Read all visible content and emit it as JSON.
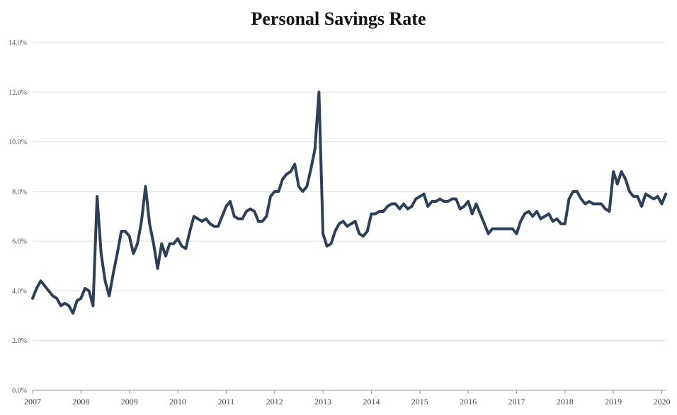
{
  "chart_data": {
    "type": "line",
    "title": "Personal Savings Rate",
    "xlabel": "",
    "ylabel": "",
    "ylim": [
      0,
      14
    ],
    "xlim": [
      2007,
      2020.08
    ],
    "y_ticks": [
      {
        "value": 0,
        "label": "0.0%"
      },
      {
        "value": 2,
        "label": "2.0%"
      },
      {
        "value": 4,
        "label": "4.0%"
      },
      {
        "value": 6,
        "label": "6.0%"
      },
      {
        "value": 8,
        "label": "8.0%"
      },
      {
        "value": 10,
        "label": "10.0%"
      },
      {
        "value": 12,
        "label": "12.0%"
      },
      {
        "value": 14,
        "label": "14.0%"
      }
    ],
    "x_ticks": [
      {
        "value": 2007,
        "label": "2007"
      },
      {
        "value": 2008,
        "label": "2008"
      },
      {
        "value": 2009,
        "label": "2009"
      },
      {
        "value": 2010,
        "label": "2010"
      },
      {
        "value": 2011,
        "label": "2011"
      },
      {
        "value": 2012,
        "label": "2012"
      },
      {
        "value": 2013,
        "label": "2013"
      },
      {
        "value": 2014,
        "label": "2014"
      },
      {
        "value": 2015,
        "label": "2015"
      },
      {
        "value": 2016,
        "label": "2016"
      },
      {
        "value": 2017,
        "label": "2017"
      },
      {
        "value": 2018,
        "label": "2018"
      },
      {
        "value": 2019,
        "label": "2019"
      },
      {
        "value": 2020,
        "label": "2020"
      }
    ],
    "grid": true,
    "legend": "none",
    "series": [
      {
        "name": "Personal Savings Rate",
        "color": "#2e4057",
        "x_start": 2007.0,
        "x_step": 0.08333,
        "values": [
          3.7,
          4.1,
          4.4,
          4.2,
          4.0,
          3.8,
          3.7,
          3.4,
          3.5,
          3.4,
          3.1,
          3.6,
          3.7,
          4.1,
          4.0,
          3.4,
          7.8,
          5.5,
          4.4,
          3.8,
          4.7,
          5.5,
          6.4,
          6.4,
          6.2,
          5.5,
          5.9,
          6.8,
          8.2,
          6.7,
          5.9,
          4.9,
          5.9,
          5.4,
          5.9,
          5.9,
          6.1,
          5.8,
          5.7,
          6.4,
          7.0,
          6.9,
          6.8,
          6.9,
          6.7,
          6.6,
          6.6,
          7.0,
          7.4,
          7.6,
          7.0,
          6.9,
          6.9,
          7.2,
          7.3,
          7.2,
          6.8,
          6.8,
          7.0,
          7.8,
          8.0,
          8.0,
          8.5,
          8.7,
          8.8,
          9.1,
          8.2,
          8.0,
          8.2,
          8.9,
          9.7,
          12.0,
          6.3,
          5.8,
          5.9,
          6.4,
          6.7,
          6.8,
          6.6,
          6.7,
          6.8,
          6.3,
          6.2,
          6.4,
          7.1,
          7.1,
          7.2,
          7.2,
          7.4,
          7.5,
          7.5,
          7.3,
          7.5,
          7.3,
          7.4,
          7.7,
          7.8,
          7.9,
          7.4,
          7.6,
          7.6,
          7.7,
          7.6,
          7.6,
          7.7,
          7.7,
          7.3,
          7.4,
          7.6,
          7.1,
          7.5,
          7.1,
          6.7,
          6.3,
          6.5,
          6.5,
          6.5,
          6.5,
          6.5,
          6.5,
          6.3,
          6.8,
          7.1,
          7.2,
          7.0,
          7.2,
          6.9,
          7.0,
          7.1,
          6.8,
          6.9,
          6.7,
          6.7,
          7.7,
          8.0,
          8.0,
          7.7,
          7.5,
          7.6,
          7.5,
          7.5,
          7.5,
          7.3,
          7.2,
          8.8,
          8.3,
          8.8,
          8.5,
          8.0,
          7.8,
          7.8,
          7.4,
          7.9,
          7.8,
          7.7,
          7.8,
          7.5,
          7.9
        ]
      }
    ]
  }
}
